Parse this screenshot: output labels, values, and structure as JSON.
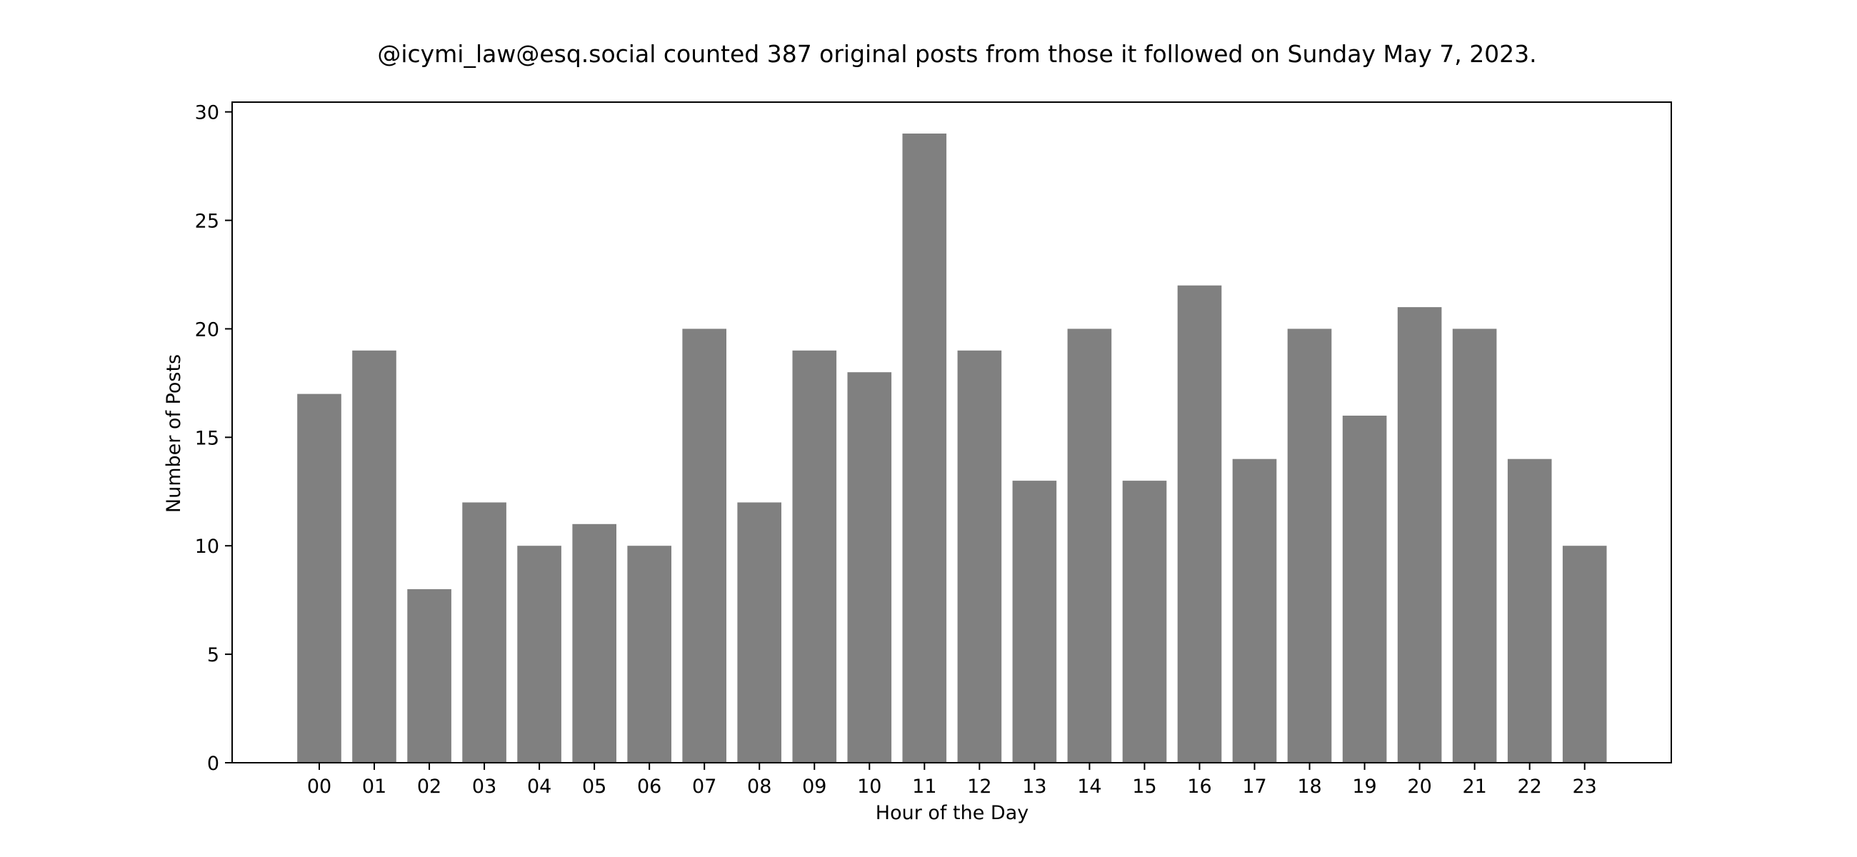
{
  "chart_data": {
    "type": "bar",
    "title": "@icymi_law@esq.social counted 387 original posts from those it followed on Sunday May 7, 2023.",
    "xlabel": "Hour of the Day",
    "ylabel": "Number of Posts",
    "categories": [
      "00",
      "01",
      "02",
      "03",
      "04",
      "05",
      "06",
      "07",
      "08",
      "09",
      "10",
      "11",
      "12",
      "13",
      "14",
      "15",
      "16",
      "17",
      "18",
      "19",
      "20",
      "21",
      "22",
      "23"
    ],
    "values": [
      17,
      19,
      8,
      12,
      10,
      11,
      10,
      20,
      12,
      19,
      18,
      29,
      19,
      13,
      20,
      13,
      22,
      14,
      20,
      16,
      21,
      20,
      14,
      10
    ],
    "ylim": [
      0,
      30.45
    ],
    "yticks": [
      0,
      5,
      10,
      15,
      20,
      25,
      30
    ],
    "grid": false,
    "legend": null,
    "bar_color": "#808080",
    "total_posts": 387
  }
}
